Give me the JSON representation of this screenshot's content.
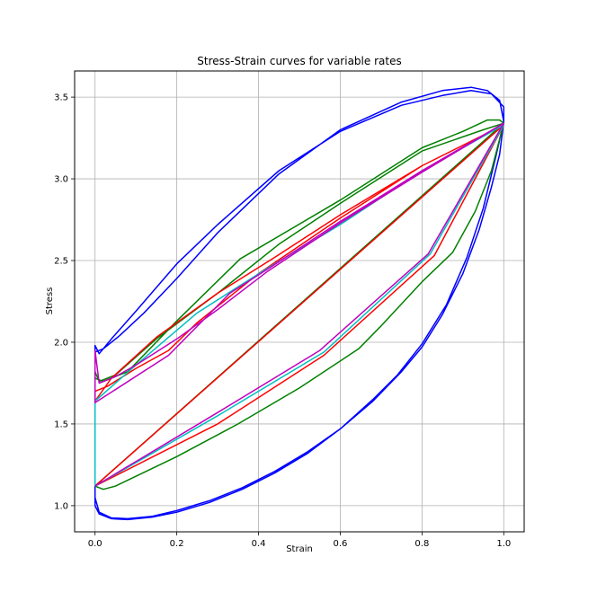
{
  "chart_data": {
    "type": "line",
    "title": "Stress-Strain curves for variable rates",
    "xlabel": "Strain",
    "ylabel": "Stress",
    "xlim": [
      -0.05,
      1.05
    ],
    "ylim": [
      0.84,
      3.66
    ],
    "xticks": [
      "0.0",
      "0.2",
      "0.4",
      "0.6",
      "0.8",
      "1.0"
    ],
    "yticks": [
      "1.0",
      "1.5",
      "2.0",
      "2.5",
      "3.0",
      "3.5"
    ],
    "grid": true,
    "legend": "none",
    "series": [
      {
        "color": "#0000ff",
        "points": [
          [
            0.0,
            1.12
          ],
          [
            0.0,
            1.0
          ],
          [
            0.01,
            0.95
          ],
          [
            0.04,
            0.92
          ],
          [
            0.08,
            0.915
          ],
          [
            0.14,
            0.93
          ],
          [
            0.2,
            0.96
          ],
          [
            0.28,
            1.02
          ],
          [
            0.36,
            1.1
          ],
          [
            0.44,
            1.2
          ],
          [
            0.52,
            1.32
          ],
          [
            0.6,
            1.47
          ],
          [
            0.68,
            1.64
          ],
          [
            0.75,
            1.82
          ],
          [
            0.8,
            1.97
          ],
          [
            0.85,
            2.17
          ],
          [
            0.9,
            2.42
          ],
          [
            0.94,
            2.69
          ],
          [
            0.97,
            2.95
          ],
          [
            0.99,
            3.15
          ],
          [
            1.0,
            3.35
          ],
          [
            0.99,
            3.48
          ],
          [
            0.96,
            3.54
          ],
          [
            0.92,
            3.56
          ],
          [
            0.85,
            3.54
          ],
          [
            0.75,
            3.47
          ],
          [
            0.6,
            3.3
          ],
          [
            0.45,
            3.03
          ],
          [
            0.3,
            2.67
          ],
          [
            0.2,
            2.39
          ],
          [
            0.12,
            2.18
          ],
          [
            0.06,
            2.04
          ],
          [
            0.02,
            1.96
          ],
          [
            0.0,
            1.94
          ],
          [
            0.0,
            1.98
          ],
          [
            0.01,
            1.93
          ],
          [
            0.04,
            2.02
          ],
          [
            0.1,
            2.19
          ],
          [
            0.2,
            2.48
          ],
          [
            0.3,
            2.72
          ],
          [
            0.45,
            3.05
          ],
          [
            0.6,
            3.29
          ],
          [
            0.75,
            3.45
          ],
          [
            0.85,
            3.51
          ],
          [
            0.92,
            3.54
          ],
          [
            0.97,
            3.52
          ],
          [
            1.0,
            3.44
          ],
          [
            1.0,
            3.35
          ],
          [
            0.98,
            3.13
          ],
          [
            0.95,
            2.82
          ],
          [
            0.91,
            2.52
          ],
          [
            0.86,
            2.23
          ],
          [
            0.8,
            1.99
          ],
          [
            0.74,
            1.8
          ],
          [
            0.68,
            1.65
          ],
          [
            0.6,
            1.47
          ],
          [
            0.52,
            1.33
          ],
          [
            0.44,
            1.21
          ],
          [
            0.36,
            1.11
          ],
          [
            0.28,
            1.03
          ],
          [
            0.2,
            0.97
          ],
          [
            0.14,
            0.935
          ],
          [
            0.08,
            0.92
          ],
          [
            0.04,
            0.925
          ],
          [
            0.01,
            0.96
          ],
          [
            0.0,
            1.05
          ],
          [
            0.0,
            1.12
          ]
        ]
      },
      {
        "color": "#008000",
        "points": [
          [
            0.0,
            1.12
          ],
          [
            0.02,
            1.1
          ],
          [
            0.05,
            1.12
          ],
          [
            0.2,
            1.3
          ],
          [
            0.35,
            1.5
          ],
          [
            0.5,
            1.72
          ],
          [
            0.645,
            1.96
          ],
          [
            0.7,
            2.1
          ],
          [
            0.8,
            2.37
          ],
          [
            0.875,
            2.55
          ],
          [
            0.93,
            2.8
          ],
          [
            0.97,
            3.05
          ],
          [
            1.0,
            3.34
          ],
          [
            0.99,
            3.36
          ],
          [
            0.96,
            3.36
          ],
          [
            0.9,
            3.29
          ],
          [
            0.8,
            3.19
          ],
          [
            0.6,
            2.87
          ],
          [
            0.355,
            2.51
          ],
          [
            0.2,
            2.13
          ],
          [
            0.08,
            1.82
          ],
          [
            0.02,
            1.76
          ],
          [
            0.0,
            1.78
          ],
          [
            0.0,
            1.82
          ],
          [
            0.01,
            1.76
          ],
          [
            0.05,
            1.8
          ],
          [
            0.15,
            2.02
          ],
          [
            0.3,
            2.3
          ],
          [
            0.45,
            2.6
          ],
          [
            0.6,
            2.85
          ],
          [
            0.8,
            3.17
          ],
          [
            0.95,
            3.3
          ],
          [
            1.0,
            3.34
          ],
          [
            0.0,
            1.12
          ]
        ]
      },
      {
        "color": "#ff0000",
        "points": [
          [
            0.0,
            1.12
          ],
          [
            0.3,
            1.5
          ],
          [
            0.56,
            1.92
          ],
          [
            0.83,
            2.53
          ],
          [
            1.0,
            3.33
          ],
          [
            0.8,
            3.08
          ],
          [
            0.6,
            2.78
          ],
          [
            0.44,
            2.52
          ],
          [
            0.3,
            2.3
          ],
          [
            0.15,
            2.03
          ],
          [
            0.04,
            1.78
          ],
          [
            0.0,
            1.64
          ],
          [
            0.0,
            1.7
          ],
          [
            0.03,
            1.73
          ],
          [
            0.1,
            1.84
          ],
          [
            0.18,
            1.95
          ],
          [
            0.25,
            2.12
          ],
          [
            0.4,
            2.42
          ],
          [
            0.6,
            2.76
          ],
          [
            0.8,
            3.08
          ],
          [
            1.0,
            3.33
          ],
          [
            0.0,
            1.12
          ]
        ]
      },
      {
        "color": "#00bfbf",
        "points": [
          [
            0.0,
            1.12
          ],
          [
            0.3,
            1.55
          ],
          [
            0.56,
            1.94
          ],
          [
            0.82,
            2.54
          ],
          [
            1.0,
            3.33
          ],
          [
            0.8,
            3.05
          ],
          [
            0.6,
            2.72
          ],
          [
            0.42,
            2.45
          ],
          [
            0.25,
            2.18
          ],
          [
            0.1,
            1.86
          ],
          [
            0.0,
            1.64
          ],
          [
            0.0,
            1.12
          ]
        ]
      },
      {
        "color": "#bf00bf",
        "points": [
          [
            0.0,
            1.12
          ],
          [
            0.3,
            1.57
          ],
          [
            0.55,
            1.95
          ],
          [
            0.815,
            2.54
          ],
          [
            1.0,
            3.34
          ],
          [
            0.8,
            3.05
          ],
          [
            0.6,
            2.74
          ],
          [
            0.43,
            2.46
          ],
          [
            0.33,
            2.3
          ],
          [
            0.18,
            1.92
          ],
          [
            0.0,
            1.63
          ],
          [
            0.0,
            1.95
          ],
          [
            0.01,
            1.75
          ],
          [
            0.05,
            1.79
          ],
          [
            0.1,
            1.86
          ],
          [
            0.2,
            2.02
          ],
          [
            0.3,
            2.2
          ],
          [
            0.42,
            2.43
          ],
          [
            0.6,
            2.73
          ],
          [
            0.8,
            3.04
          ],
          [
            1.0,
            3.34
          ]
        ]
      }
    ]
  }
}
